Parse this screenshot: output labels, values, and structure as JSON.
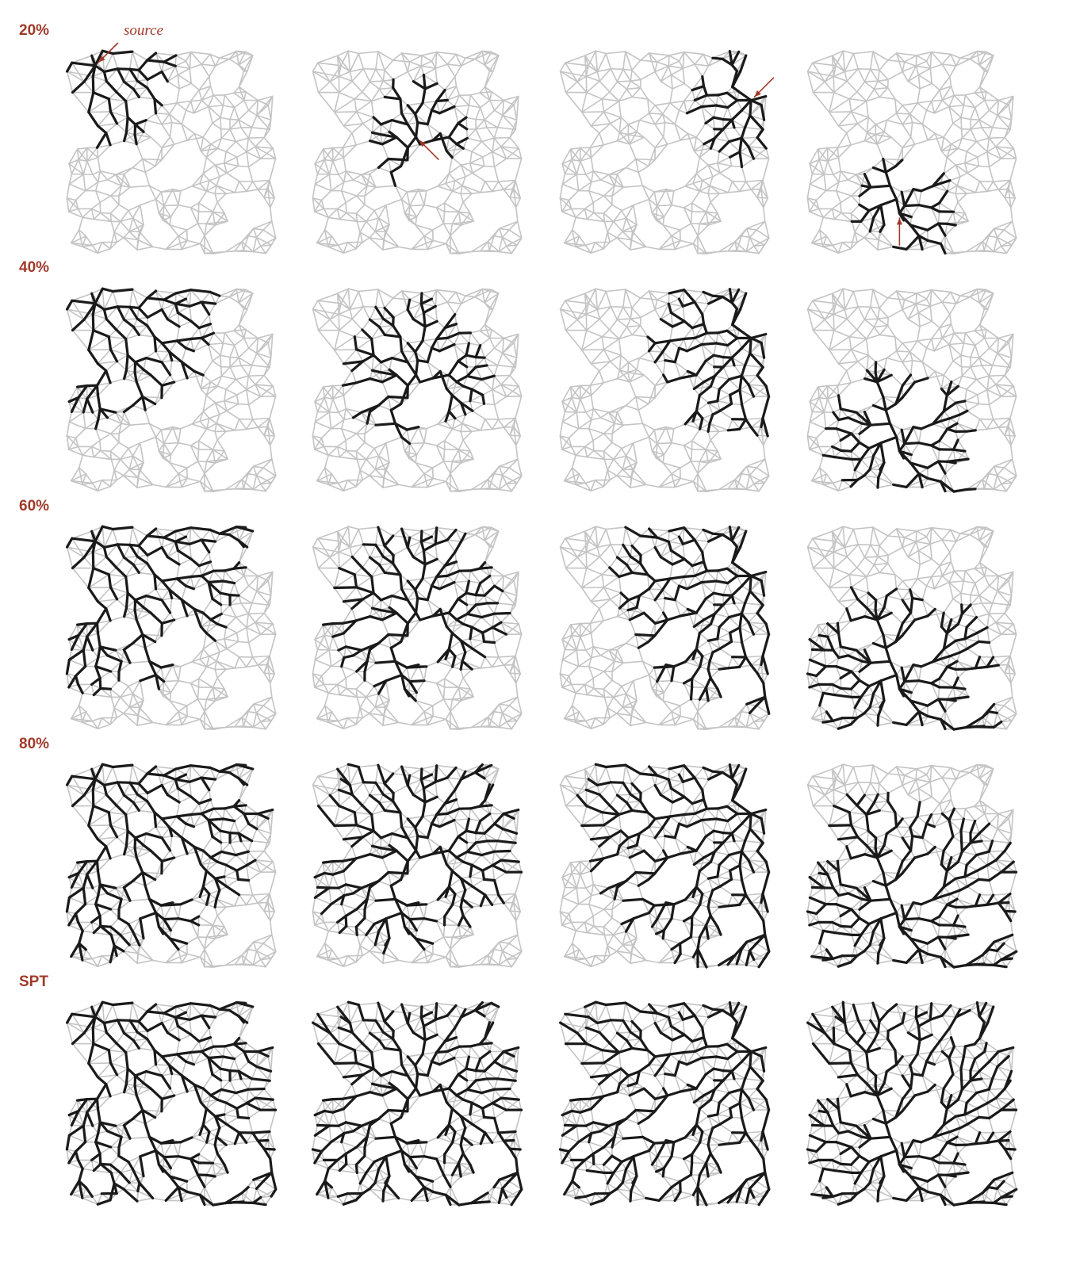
{
  "figure": {
    "source_label": "source",
    "rows": [
      {
        "label": "20%",
        "fraction": 0.2
      },
      {
        "label": "40%",
        "fraction": 0.4
      },
      {
        "label": "60%",
        "fraction": 0.6
      },
      {
        "label": "80%",
        "fraction": 0.8
      },
      {
        "label": "SPT",
        "fraction": 1.0
      }
    ],
    "columns": 4,
    "sources": [
      "top-left",
      "center",
      "right-upper",
      "bottom-center"
    ],
    "colors": {
      "graph_edge": "#c4c4c4",
      "tree_edge": "#1a1a1a",
      "annotation": "#a13a2a"
    }
  }
}
